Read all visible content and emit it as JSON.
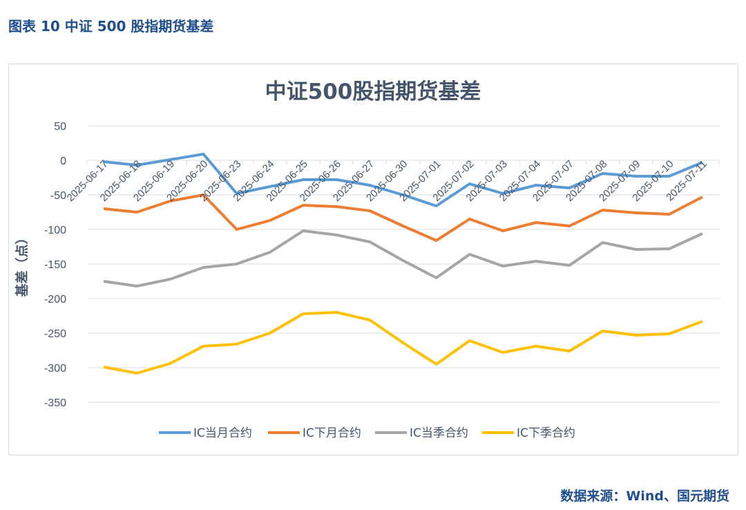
{
  "header": {
    "figure_caption": "图表 10  中证 500 股指期货基差"
  },
  "footer": {
    "source": "数据来源：Wind、国元期货"
  },
  "chart_data": {
    "type": "line",
    "title": "中证500股指期货基差",
    "ylabel": "基差（点）",
    "xlabel": "",
    "ylim": [
      -350,
      50
    ],
    "yticks": [
      50,
      0,
      -50,
      -100,
      -150,
      -200,
      -250,
      -300,
      -350
    ],
    "grid": true,
    "legend": "bottom",
    "categories": [
      "2025-06-17",
      "2025-06-18",
      "2025-06-19",
      "2025-06-20",
      "2025-06-23",
      "2025-06-24",
      "2025-06-25",
      "2025-06-26",
      "2025-06-27",
      "2025-06-30",
      "2025-07-01",
      "2025-07-02",
      "2025-07-03",
      "2025-07-04",
      "2025-07-07",
      "2025-07-08",
      "2025-07-09",
      "2025-07-10",
      "2025-07-11"
    ],
    "series": [
      {
        "name": "IC当月合约",
        "color": "#5b9bd5",
        "values": [
          -2,
          -7,
          1,
          9,
          -48,
          -38,
          -28,
          -28,
          -36,
          -50,
          -66,
          -34,
          -48,
          -36,
          -40,
          -19,
          -23,
          -23,
          -3
        ]
      },
      {
        "name": "IC下月合约",
        "color": "#ed7d31",
        "values": [
          -70,
          -75,
          -59,
          -50,
          -100,
          -87,
          -65,
          -67,
          -73,
          -95,
          -116,
          -85,
          -102,
          -90,
          -95,
          -72,
          -76,
          -78,
          -53
        ]
      },
      {
        "name": "IC当季合约",
        "color": "#a5a5a5",
        "values": [
          -175,
          -182,
          -172,
          -155,
          -150,
          -133,
          -102,
          -108,
          -118,
          -145,
          -170,
          -136,
          -153,
          -146,
          -152,
          -119,
          -129,
          -128,
          -106
        ]
      },
      {
        "name": "IC下季合约",
        "color": "#ffc000",
        "values": [
          -299,
          -308,
          -294,
          -269,
          -266,
          -250,
          -222,
          -220,
          -231,
          -264,
          -295,
          -261,
          -278,
          -269,
          -276,
          -247,
          -253,
          -251,
          -233
        ]
      }
    ]
  }
}
